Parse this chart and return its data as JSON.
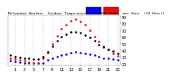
{
  "title": "Milwaukee Weather  Outdoor Temperature  vs THSW Index  per Hour  (24 Hours)",
  "background_color": "#ffffff",
  "grid_color": "#bbbbbb",
  "hours": [
    0,
    1,
    2,
    3,
    4,
    5,
    6,
    7,
    8,
    9,
    10,
    11,
    12,
    13,
    14,
    15,
    16,
    17,
    18,
    19,
    20,
    21,
    22,
    23
  ],
  "temp_outdoor": [
    33,
    31,
    30,
    29,
    28,
    27,
    27,
    31,
    38,
    46,
    54,
    60,
    64,
    67,
    68,
    66,
    63,
    59,
    54,
    49,
    45,
    42,
    39,
    36
  ],
  "thsw_index": [
    29,
    27,
    26,
    25,
    23,
    22,
    22,
    28,
    37,
    50,
    62,
    72,
    78,
    84,
    86,
    83,
    78,
    70,
    61,
    53,
    46,
    41,
    36,
    32
  ],
  "dew_point": [
    25,
    24,
    23,
    22,
    21,
    21,
    21,
    22,
    26,
    29,
    31,
    33,
    35,
    37,
    38,
    37,
    36,
    35,
    33,
    31,
    29,
    28,
    27,
    26
  ],
  "series_colors": {
    "outdoor": "#000000",
    "thsw": "#ff0000",
    "dew": "#0000ff"
  },
  "ylim": [
    18,
    92
  ],
  "xlim": [
    -0.5,
    23.5
  ],
  "yticks": [
    20,
    30,
    40,
    50,
    60,
    70,
    80,
    90
  ],
  "xticks": [
    1,
    3,
    5,
    7,
    9,
    11,
    13,
    15,
    17,
    19,
    21,
    23
  ],
  "legend_blue_color": "#0000ff",
  "legend_red_color": "#ff0000",
  "tick_fontsize": 3.5,
  "title_fontsize": 3.2,
  "marker_size": 0.9
}
